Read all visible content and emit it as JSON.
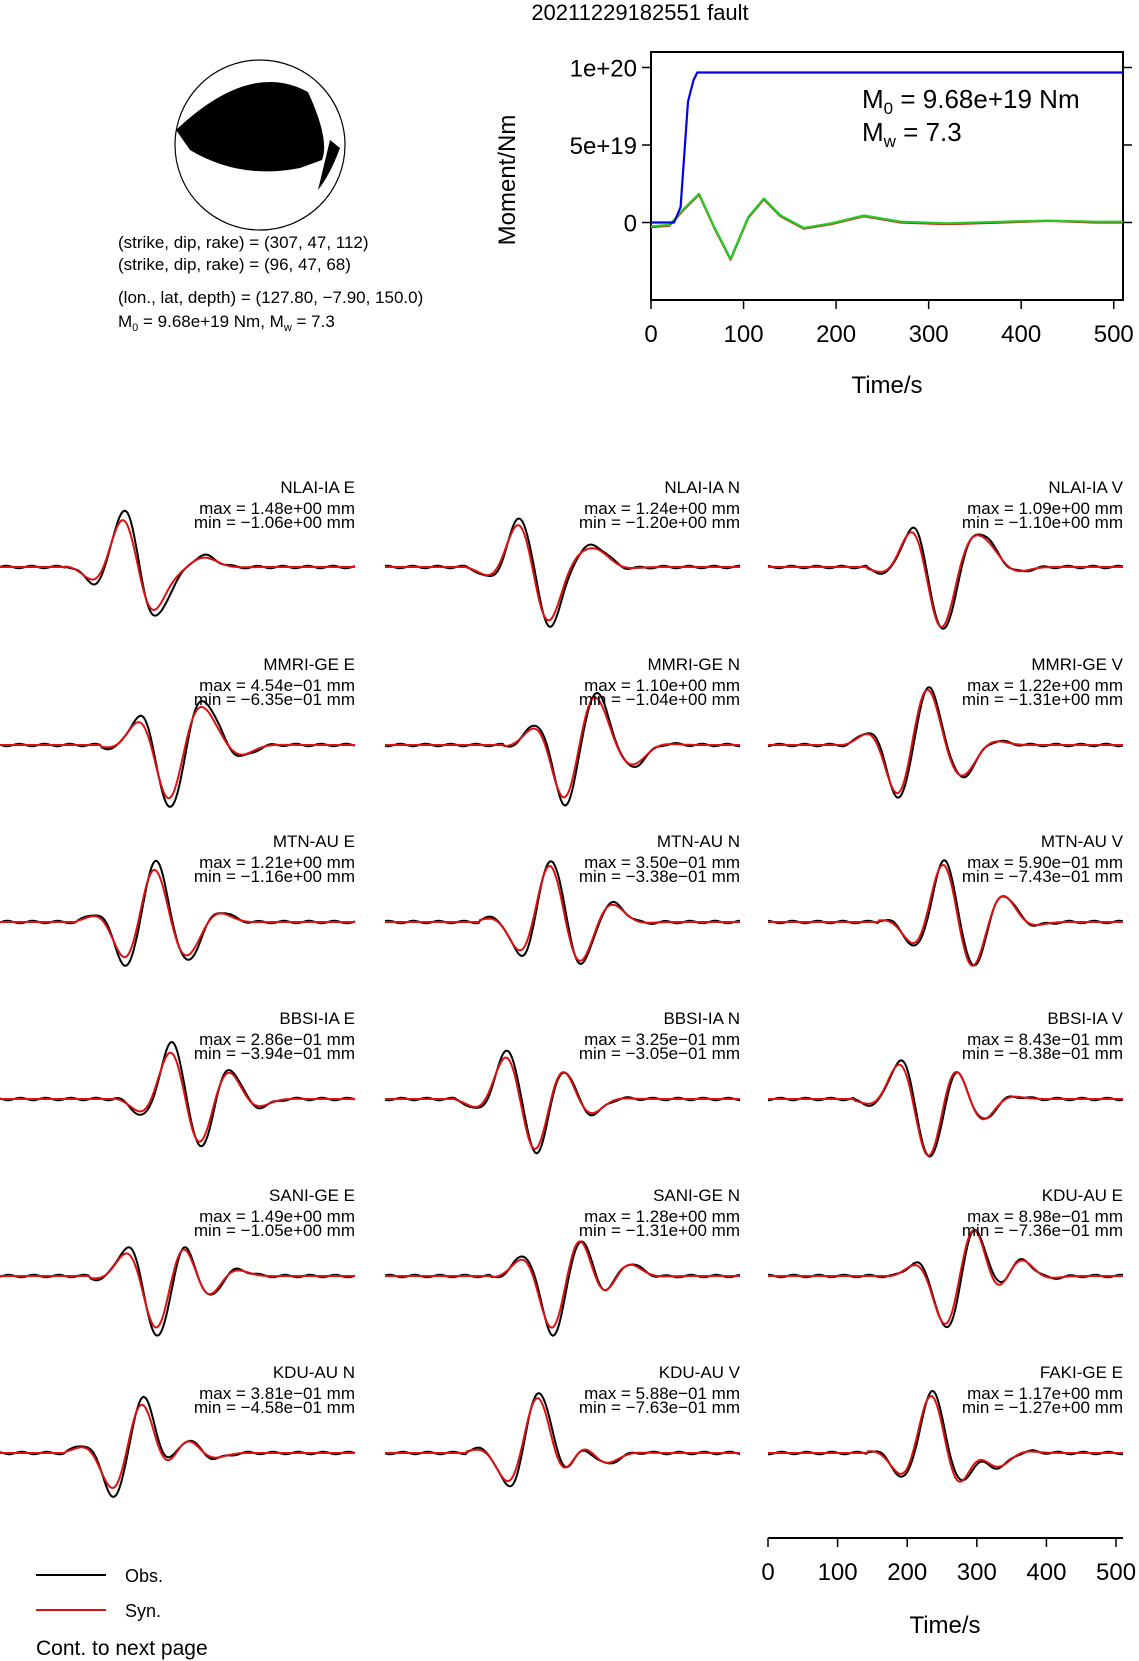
{
  "title": "20211229182551 fault",
  "mechanism": {
    "line1": "(strike, dip, rake) = (307, 47, 112)",
    "line2": "(strike, dip, rake) = (96, 47, 68)",
    "line3": "(lon., lat, depth) = (127.80, −7.90, 150.0)",
    "m0_label": "M0 = 9.68e+19 Nm, Mw = 7.3"
  },
  "moment_plot": {
    "ylabel": "Moment/Nm",
    "xlabel": "Time/s",
    "yticks": [
      "1e+20",
      "5e+19",
      "0"
    ],
    "xticks": [
      "0",
      "100",
      "200",
      "300",
      "400",
      "500"
    ],
    "m0_text": "9.68e+19 Nm",
    "mw_text": "7.3"
  },
  "chart_data": {
    "type": "line",
    "title": "20211229182551 fault",
    "moment_rate": {
      "xlabel": "Time/s",
      "ylabel": "Moment/Nm",
      "xlim": [
        0,
        510
      ],
      "ylim": [
        -5e+19,
        1.1e+20
      ],
      "series": [
        {
          "color": "#0000ee",
          "x": [
            0,
            25,
            32,
            40,
            46,
            50,
            510
          ],
          "y": [
            0,
            0,
            1e+19,
            7.8e+19,
            9.2e+19,
            9.68e+19,
            9.68e+19
          ]
        },
        {
          "color": "#cc2222",
          "x": [
            0,
            20,
            35,
            52,
            68,
            86,
            105,
            122,
            140,
            165,
            195,
            230,
            270,
            320,
            380,
            430,
            480,
            510
          ],
          "y": [
            -3e+18,
            -2e+18,
            8e+18,
            1.8e+19,
            -3e+18,
            -2.4e+19,
            3e+18,
            1.5e+19,
            4e+18,
            -4e+18,
            -1e+18,
            4e+18,
            0.0,
            -1e+18,
            0.0,
            1e+18,
            0.0,
            0.0
          ]
        },
        {
          "color": "#22cc22",
          "x": [
            0,
            20,
            35,
            52,
            68,
            86,
            105,
            122,
            140,
            165,
            195,
            230,
            270,
            320,
            380,
            430,
            480,
            510
          ],
          "y": [
            -2.5e+18,
            -1.5e+18,
            8.5e+18,
            1.85e+19,
            -2.5e+18,
            -2.35e+19,
            3.5e+18,
            1.55e+19,
            4.5e+18,
            -3.5e+18,
            -5e+17,
            4.5e+18,
            5e+17,
            -5e+17,
            5e+17,
            1.2e+18,
            5e+17,
            5e+17
          ]
        }
      ]
    },
    "waveforms": [
      {
        "label": "NLAI-IA E",
        "max": "max = 1.48e+00 mm",
        "min": "min = −1.06e+00 mm"
      },
      {
        "label": "NLAI-IA N",
        "max": "max = 1.24e+00 mm",
        "min": "min = −1.20e+00 mm"
      },
      {
        "label": "NLAI-IA V",
        "max": "max = 1.09e+00 mm",
        "min": "min = −1.10e+00 mm"
      },
      {
        "label": "MMRI-GE E",
        "max": "max = 4.54e−01 mm",
        "min": "min = −6.35e−01 mm"
      },
      {
        "label": "MMRI-GE N",
        "max": "max = 1.10e+00 mm",
        "min": "min = −1.04e+00 mm"
      },
      {
        "label": "MMRI-GE V",
        "max": "max = 1.22e+00 mm",
        "min": "min = −1.31e+00 mm"
      },
      {
        "label": "MTN-AU E",
        "max": "max = 1.21e+00 mm",
        "min": "min = −1.16e+00 mm"
      },
      {
        "label": "MTN-AU N",
        "max": "max = 3.50e−01 mm",
        "min": "min = −3.38e−01 mm"
      },
      {
        "label": "MTN-AU V",
        "max": "max = 5.90e−01 mm",
        "min": "min = −7.43e−01 mm"
      },
      {
        "label": "BBSI-IA E",
        "max": "max = 2.86e−01 mm",
        "min": "min = −3.94e−01 mm"
      },
      {
        "label": "BBSI-IA N",
        "max": "max = 3.25e−01 mm",
        "min": "min = −3.05e−01 mm"
      },
      {
        "label": "BBSI-IA V",
        "max": "max = 8.43e−01 mm",
        "min": "min = −8.38e−01 mm"
      },
      {
        "label": "SANI-GE E",
        "max": "max = 1.49e+00 mm",
        "min": "min = −1.05e+00 mm"
      },
      {
        "label": "SANI-GE N",
        "max": "max = 1.28e+00 mm",
        "min": "min = −1.31e+00 mm"
      },
      {
        "label": "KDU-AU E",
        "max": "max = 8.98e−01 mm",
        "min": "min = −7.36e−01 mm"
      },
      {
        "label": "KDU-AU N",
        "max": "max = 3.81e−01 mm",
        "min": "min = −4.58e−01 mm"
      },
      {
        "label": "KDU-AU V",
        "max": "max = 5.88e−01 mm",
        "min": "min = −7.63e−01 mm"
      },
      {
        "label": "FAKI-GE E",
        "max": "max = 1.17e+00 mm",
        "min": "min = −1.27e+00 mm"
      }
    ],
    "time_axis": {
      "xlabel": "Time/s",
      "xticks": [
        "0",
        "100",
        "200",
        "300",
        "400",
        "500"
      ],
      "xlim": [
        0,
        510
      ]
    }
  },
  "legend": {
    "obs": "Obs.",
    "syn": "Syn."
  },
  "colors": {
    "obs": "#000000",
    "syn": "#dd1111",
    "moment": "#0000ee",
    "green": "#22cc22"
  },
  "footer": "Cont. to next page"
}
